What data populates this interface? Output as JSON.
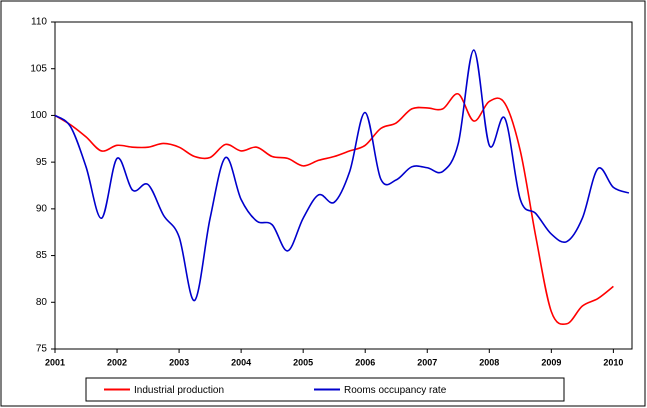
{
  "chart_data": {
    "type": "line",
    "x": [
      2001,
      2001.25,
      2001.5,
      2001.75,
      2002,
      2002.25,
      2002.5,
      2002.75,
      2003,
      2003.25,
      2003.5,
      2003.75,
      2004,
      2004.25,
      2004.5,
      2004.75,
      2005,
      2005.25,
      2005.5,
      2005.75,
      2006,
      2006.25,
      2006.5,
      2006.75,
      2007,
      2007.25,
      2007.5,
      2007.75,
      2008,
      2008.25,
      2008.5,
      2008.75,
      2009,
      2009.25,
      2009.5,
      2009.75,
      2010,
      2010.25
    ],
    "series": [
      {
        "name": "Industrial production",
        "color": "#ff0000",
        "values": [
          100,
          99,
          97.7,
          96.2,
          96.8,
          96.6,
          96.6,
          97,
          96.6,
          95.6,
          95.5,
          96.9,
          96.2,
          96.6,
          95.6,
          95.4,
          94.6,
          95.2,
          95.6,
          96.2,
          96.8,
          98.6,
          99.2,
          100.7,
          100.8,
          100.7,
          102.3,
          99.4,
          101.5,
          101.3,
          96.2,
          87,
          79,
          77.7,
          79.6,
          80.4,
          81.7,
          null
        ]
      },
      {
        "name": "Rooms occupancy rate",
        "color": "#0000cc",
        "values": [
          100,
          98.8,
          94.5,
          89,
          95.4,
          92,
          92.6,
          89.3,
          87,
          80.2,
          89,
          95.5,
          91,
          88.7,
          88.3,
          85.5,
          89,
          91.5,
          90.7,
          94,
          100.3,
          93.2,
          93.1,
          94.5,
          94.4,
          94,
          97,
          107,
          96.8,
          99.7,
          91,
          89.5,
          87.3,
          86.5,
          89,
          94.3,
          92.3,
          91.7
        ]
      }
    ],
    "xlim": [
      2001,
      2010.3
    ],
    "xticks": [
      2001,
      2002,
      2003,
      2004,
      2005,
      2006,
      2007,
      2008,
      2009,
      2010
    ],
    "ylim": [
      75,
      110
    ],
    "yticks": [
      75,
      80,
      85,
      90,
      95,
      100,
      105,
      110
    ],
    "grid": false,
    "legend": "bottom"
  }
}
